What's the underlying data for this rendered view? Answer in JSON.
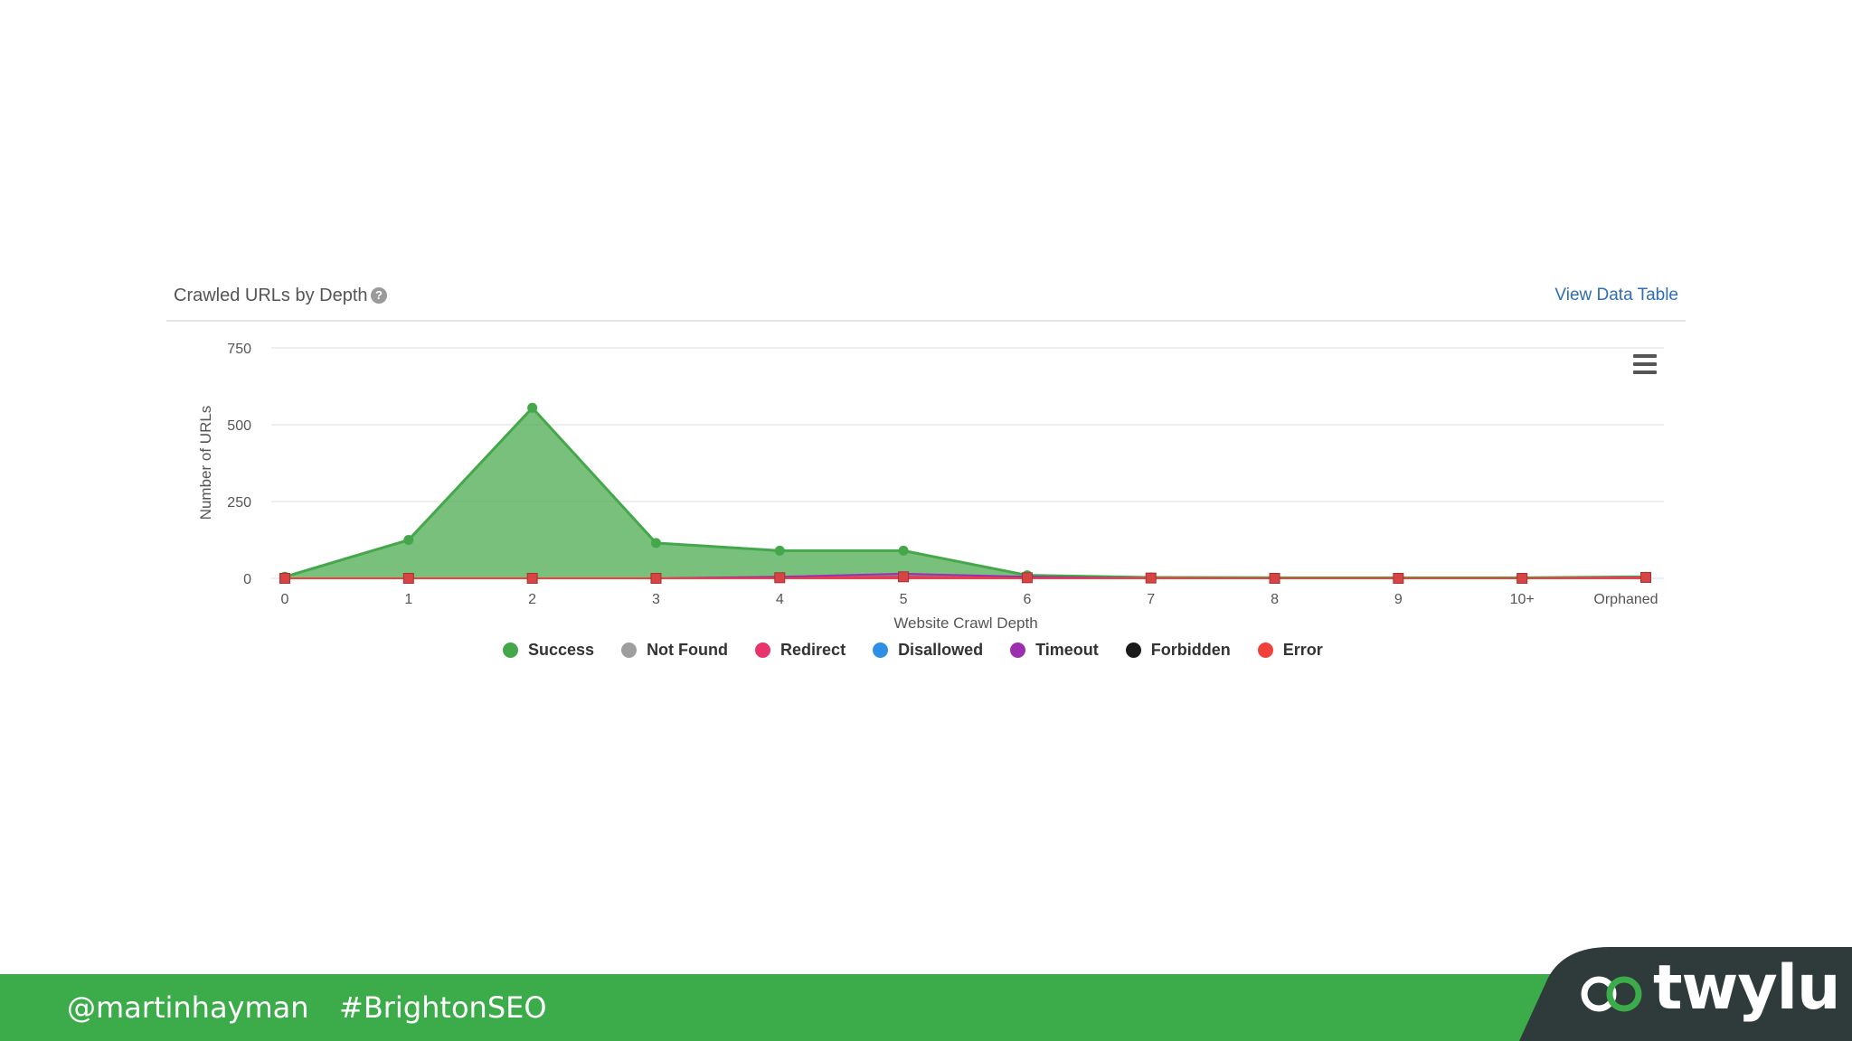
{
  "panel": {
    "title": "Crawled URLs by Depth",
    "help_glyph": "?",
    "view_link": "View Data Table"
  },
  "chart_data": {
    "type": "area",
    "title": "Crawled URLs by Depth",
    "xlabel": "Website Crawl Depth",
    "ylabel": "Number of URLs",
    "ylim": [
      0,
      750
    ],
    "yticks": [
      0,
      250,
      500,
      750
    ],
    "categories": [
      "0",
      "1",
      "2",
      "3",
      "4",
      "5",
      "6",
      "7",
      "8",
      "9",
      "10+",
      "Orphaned"
    ],
    "grid": true,
    "legend_position": "bottom",
    "series": [
      {
        "name": "Success",
        "color": "#44a84a",
        "values": [
          5,
          125,
          555,
          115,
          90,
          90,
          10,
          3,
          2,
          2,
          2,
          5
        ]
      },
      {
        "name": "Not Found",
        "color": "#9e9e9e",
        "values": [
          0,
          0,
          0,
          0,
          0,
          0,
          0,
          0,
          0,
          0,
          0,
          0
        ]
      },
      {
        "name": "Redirect",
        "color": "#e8336d",
        "values": [
          0,
          0,
          0,
          0,
          2,
          5,
          2,
          1,
          0,
          0,
          0,
          3
        ]
      },
      {
        "name": "Disallowed",
        "color": "#2d8fe6",
        "values": [
          0,
          0,
          0,
          0,
          0,
          0,
          0,
          0,
          0,
          0,
          0,
          0
        ]
      },
      {
        "name": "Timeout",
        "color": "#9b2fae",
        "values": [
          0,
          0,
          0,
          0,
          5,
          15,
          5,
          0,
          0,
          0,
          0,
          0
        ]
      },
      {
        "name": "Forbidden",
        "color": "#1a1a1a",
        "values": [
          0,
          0,
          0,
          0,
          0,
          0,
          0,
          0,
          0,
          0,
          0,
          0
        ]
      },
      {
        "name": "Error",
        "color": "#f0413a",
        "values": [
          0,
          0,
          0,
          0,
          0,
          0,
          0,
          0,
          0,
          0,
          0,
          0
        ]
      }
    ]
  },
  "footer": {
    "handle": "@martinhayman",
    "hashtag": "#BrightonSEO",
    "brand": "twylu",
    "bar_color": "#3cac4a",
    "logo_bg_color": "#2f3a3a"
  },
  "icons": {
    "help": "question-circle-icon",
    "menu": "hamburger-menu-icon",
    "logo": "twylu-logo-icon"
  }
}
